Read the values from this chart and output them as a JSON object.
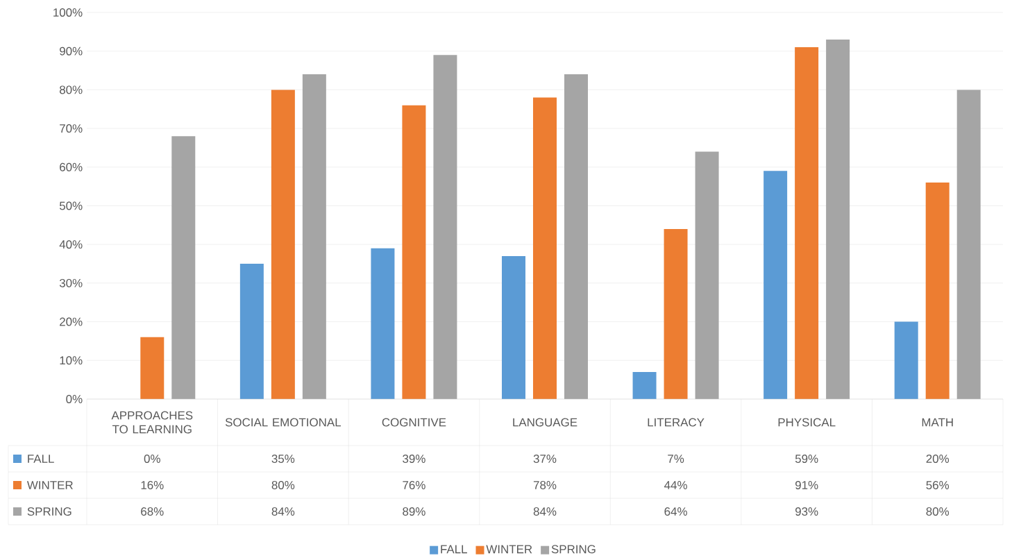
{
  "chart_data": {
    "type": "bar",
    "categories": [
      "APPROACHES TO LEARNING",
      "SOCIAL EMOTIONAL",
      "COGNITIVE",
      "LANGUAGE",
      "LITERACY",
      "PHYSICAL",
      "MATH"
    ],
    "series": [
      {
        "name": "FALL",
        "color": "#5b9bd5",
        "values": [
          0,
          35,
          39,
          37,
          7,
          59,
          20
        ],
        "value_labels": [
          "0%",
          "35%",
          "39%",
          "37%",
          "7%",
          "59%",
          "20%"
        ]
      },
      {
        "name": "WINTER",
        "color": "#ed7d31",
        "values": [
          16,
          80,
          76,
          78,
          44,
          91,
          56
        ],
        "value_labels": [
          "16%",
          "80%",
          "76%",
          "78%",
          "44%",
          "91%",
          "56%"
        ]
      },
      {
        "name": "SPRING",
        "color": "#a5a5a5",
        "values": [
          68,
          84,
          89,
          84,
          64,
          93,
          80
        ],
        "value_labels": [
          "68%",
          "84%",
          "89%",
          "84%",
          "64%",
          "93%",
          "80%"
        ]
      }
    ],
    "ylim": [
      0,
      100
    ],
    "yticks": [
      {
        "value": 0,
        "label": "0%"
      },
      {
        "value": 10,
        "label": "10%"
      },
      {
        "value": 20,
        "label": "20%"
      },
      {
        "value": 30,
        "label": "30%"
      },
      {
        "value": 40,
        "label": "40%"
      },
      {
        "value": 50,
        "label": "50%"
      },
      {
        "value": 60,
        "label": "60%"
      },
      {
        "value": 70,
        "label": "70%"
      },
      {
        "value": 80,
        "label": "80%"
      },
      {
        "value": 90,
        "label": "90%"
      },
      {
        "value": 100,
        "label": "100%"
      }
    ],
    "grid": "y",
    "legend": "bottom"
  }
}
